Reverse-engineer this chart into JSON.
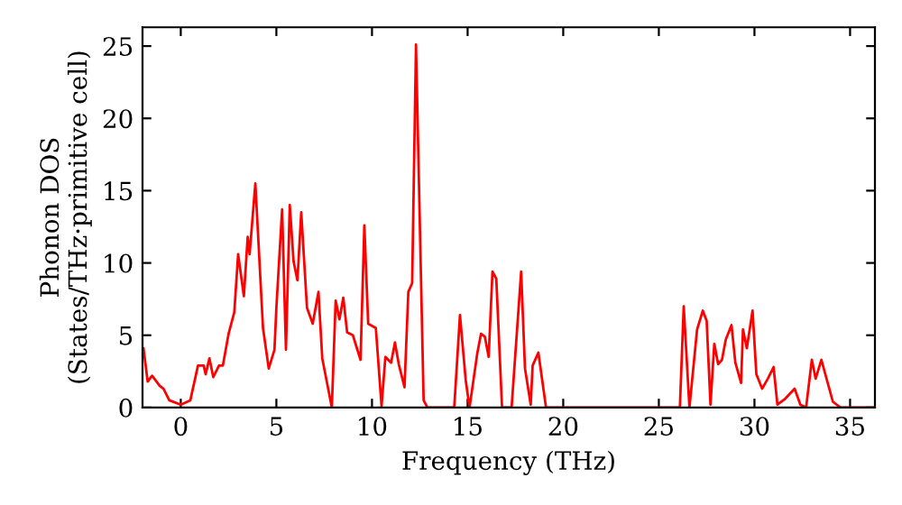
{
  "chart_data": {
    "type": "line",
    "xlabel": "Frequency (THz)",
    "ylabel": "Phonon DOS\n(States/THz·primitive cell)",
    "xlim": [
      -2,
      36.3
    ],
    "ylim": [
      0,
      26.3
    ],
    "xticks": [
      0,
      5,
      10,
      15,
      20,
      25,
      30,
      35
    ],
    "yticks": [
      0,
      5,
      10,
      15,
      20,
      25
    ],
    "grid": false,
    "marker": "none",
    "line_style": "solid",
    "series": [
      {
        "color": "#ff0000",
        "x": [
          -1.95,
          -1.73,
          -1.5,
          -1.1,
          -0.9,
          -0.6,
          0,
          0.5,
          0.9,
          1.2,
          1.3,
          1.5,
          1.7,
          2.0,
          2.2,
          2.5,
          2.8,
          3.0,
          3.3,
          3.5,
          3.6,
          3.9,
          4.3,
          4.6,
          4.9,
          5.0,
          5.3,
          5.5,
          5.7,
          5.9,
          6.1,
          6.3,
          6.6,
          6.9,
          7.2,
          7.4,
          7.9,
          8.1,
          8.3,
          8.5,
          8.7,
          9.0,
          9.4,
          9.6,
          9.8,
          10.2,
          10.5,
          10.7,
          11.0,
          11.2,
          11.4,
          11.7,
          11.9,
          12.1,
          12.3,
          12.7,
          12.9,
          14.3,
          14.6,
          14.9,
          15.1,
          15.5,
          15.7,
          15.9,
          16.1,
          16.3,
          16.5,
          16.8,
          17.3,
          17.8,
          18.0,
          18.3,
          18.4,
          18.7,
          18.9,
          19.1,
          26.1,
          26.3,
          26.6,
          27.0,
          27.3,
          27.5,
          27.7,
          27.9,
          28.1,
          28.3,
          28.5,
          28.8,
          29.0,
          29.3,
          29.4,
          29.6,
          29.9,
          30.1,
          30.4,
          30.7,
          31.0,
          31.2,
          31.6,
          32.1,
          32.4,
          32.7,
          33.0,
          33.2,
          33.5,
          34.1,
          34.5,
          36.3
        ],
        "values": [
          4.1,
          1.8,
          2.2,
          1.5,
          1.3,
          0.5,
          0.2,
          0.5,
          2.9,
          2.9,
          2.3,
          3.4,
          2.1,
          2.9,
          2.9,
          5.1,
          6.6,
          10.6,
          7.7,
          11.8,
          10.6,
          15.5,
          5.5,
          2.7,
          4.0,
          6.9,
          13.7,
          4.0,
          14.0,
          10.1,
          8.8,
          13.5,
          6.9,
          5.8,
          8.0,
          3.4,
          0,
          7.4,
          6.1,
          7.6,
          5.2,
          5.0,
          3.3,
          12.6,
          5.8,
          5.5,
          0.1,
          3.5,
          3.1,
          4.5,
          3.0,
          1.4,
          8.0,
          8.6,
          25.1,
          0.5,
          0,
          0,
          6.4,
          1.9,
          0,
          3.7,
          5.1,
          4.9,
          3.5,
          9.4,
          8.9,
          0,
          0,
          9.4,
          2.7,
          0.2,
          2.9,
          3.8,
          1.9,
          0,
          0,
          7.0,
          0,
          5.4,
          6.7,
          6.0,
          0.2,
          4.4,
          3.0,
          3.3,
          4.7,
          5.7,
          3.1,
          1.7,
          5.4,
          4.1,
          6.7,
          2.3,
          1.3,
          2.0,
          2.8,
          0.2,
          0.6,
          1.3,
          0.2,
          0,
          3.3,
          2.0,
          3.3,
          0.4,
          0,
          0
        ]
      }
    ]
  }
}
